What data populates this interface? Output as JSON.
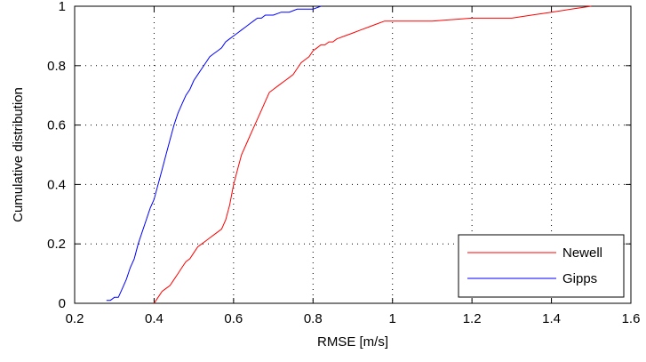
{
  "chart_data": {
    "type": "line",
    "xlabel": "RMSE [m/s]",
    "ylabel": "Cumulative distribution",
    "xlim": [
      0.2,
      1.6
    ],
    "ylim": [
      0,
      1
    ],
    "xticks": [
      0.2,
      0.4,
      0.6,
      0.8,
      1,
      1.2,
      1.4,
      1.6
    ],
    "yticks": [
      0,
      0.2,
      0.4,
      0.6,
      0.8,
      1
    ],
    "xtick_labels": [
      "0.2",
      "0.4",
      "0.6",
      "0.8",
      "1",
      "1.2",
      "1.4",
      "1.6"
    ],
    "ytick_labels": [
      "0",
      "0.2",
      "0.4",
      "0.6",
      "0.8",
      "1"
    ],
    "grid": true,
    "legend_position": "bottom-right",
    "series": [
      {
        "name": "Newell",
        "color": "#ff0000",
        "x": [
          0.4,
          0.41,
          0.42,
          0.43,
          0.44,
          0.45,
          0.46,
          0.47,
          0.48,
          0.49,
          0.5,
          0.51,
          0.52,
          0.53,
          0.54,
          0.55,
          0.56,
          0.57,
          0.58,
          0.59,
          0.6,
          0.61,
          0.62,
          0.63,
          0.64,
          0.65,
          0.66,
          0.67,
          0.68,
          0.69,
          0.7,
          0.71,
          0.72,
          0.73,
          0.74,
          0.75,
          0.76,
          0.77,
          0.78,
          0.79,
          0.8,
          0.81,
          0.82,
          0.83,
          0.84,
          0.85,
          0.86,
          0.88,
          0.9,
          0.92,
          0.94,
          0.96,
          0.98,
          1.0,
          1.1,
          1.2,
          1.3,
          1.35,
          1.4,
          1.45,
          1.5
        ],
        "y": [
          0.0,
          0.02,
          0.04,
          0.05,
          0.06,
          0.08,
          0.1,
          0.12,
          0.14,
          0.15,
          0.17,
          0.19,
          0.2,
          0.21,
          0.22,
          0.23,
          0.24,
          0.25,
          0.28,
          0.33,
          0.4,
          0.45,
          0.5,
          0.53,
          0.56,
          0.59,
          0.62,
          0.65,
          0.68,
          0.71,
          0.72,
          0.73,
          0.74,
          0.75,
          0.76,
          0.77,
          0.79,
          0.81,
          0.82,
          0.83,
          0.85,
          0.86,
          0.87,
          0.87,
          0.88,
          0.88,
          0.89,
          0.9,
          0.91,
          0.92,
          0.93,
          0.94,
          0.95,
          0.95,
          0.95,
          0.96,
          0.96,
          0.97,
          0.98,
          0.99,
          1.0
        ]
      },
      {
        "name": "Gipps",
        "color": "#0000ff",
        "x": [
          0.28,
          0.29,
          0.3,
          0.31,
          0.32,
          0.33,
          0.34,
          0.35,
          0.36,
          0.37,
          0.38,
          0.39,
          0.4,
          0.41,
          0.42,
          0.43,
          0.44,
          0.45,
          0.46,
          0.47,
          0.48,
          0.49,
          0.5,
          0.51,
          0.52,
          0.53,
          0.54,
          0.55,
          0.56,
          0.57,
          0.58,
          0.59,
          0.6,
          0.61,
          0.62,
          0.63,
          0.64,
          0.65,
          0.66,
          0.67,
          0.68,
          0.7,
          0.72,
          0.74,
          0.76,
          0.78,
          0.8,
          0.82
        ],
        "y": [
          0.01,
          0.01,
          0.02,
          0.02,
          0.05,
          0.08,
          0.12,
          0.15,
          0.2,
          0.24,
          0.28,
          0.32,
          0.35,
          0.4,
          0.45,
          0.5,
          0.55,
          0.6,
          0.64,
          0.67,
          0.7,
          0.72,
          0.75,
          0.77,
          0.79,
          0.81,
          0.83,
          0.84,
          0.85,
          0.86,
          0.88,
          0.89,
          0.9,
          0.91,
          0.92,
          0.93,
          0.94,
          0.95,
          0.96,
          0.96,
          0.97,
          0.97,
          0.98,
          0.98,
          0.99,
          0.99,
          0.99,
          1.0
        ]
      }
    ]
  }
}
